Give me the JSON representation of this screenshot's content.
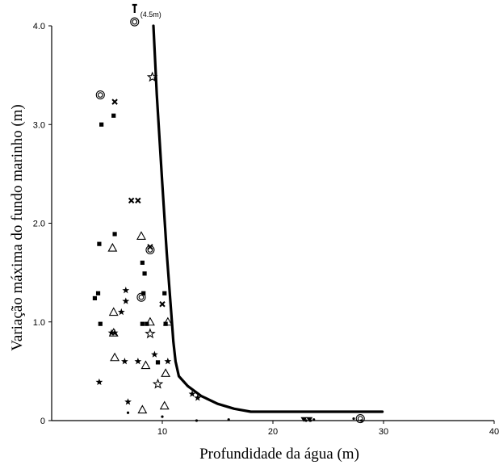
{
  "chart_data": {
    "type": "scatter",
    "xlabel": "Profundidade da água (m)",
    "ylabel": "Variação máxima do fundo marinho (m)",
    "xlim": [
      0,
      40
    ],
    "ylim": [
      0,
      4.0
    ],
    "x_ticks": [
      {
        "value": 10,
        "label": "10"
      },
      {
        "value": 20,
        "label": "20"
      },
      {
        "value": 30,
        "label": "30"
      },
      {
        "value": 40,
        "label": "40"
      }
    ],
    "y_ticks": [
      {
        "value": 0,
        "label": "0"
      },
      {
        "value": 1.0,
        "label": "1.0"
      },
      {
        "value": 2.0,
        "label": "2.0"
      },
      {
        "value": 3.0,
        "label": "3.0"
      },
      {
        "value": 4.0,
        "label": "4.0"
      }
    ],
    "grid": false,
    "annotations": [
      {
        "text": "(4.5m)",
        "x": 7.5,
        "y": 4.0,
        "note": "arrow marker pointing beyond the top of the axis"
      }
    ],
    "envelope_line": {
      "x": [
        9.2,
        9.5,
        10.0,
        10.4,
        10.8,
        11.0,
        11.2,
        11.5,
        12.3,
        13.5,
        15.0,
        16.5,
        18.0,
        20.0,
        25.0,
        29.9
      ],
      "y": [
        4.0,
        3.3,
        2.4,
        1.7,
        1.1,
        0.8,
        0.6,
        0.45,
        0.35,
        0.25,
        0.17,
        0.12,
        0.09,
        0.09,
        0.09,
        0.09
      ]
    },
    "series": [
      {
        "marker": "filled-square",
        "x": [
          3.9,
          4.2,
          4.3,
          4.4,
          4.5,
          5.6,
          5.7,
          8.2,
          8.4,
          8.3,
          8.2,
          8.6,
          9.6,
          10.2,
          10.3
        ],
        "y": [
          1.24,
          1.29,
          1.79,
          0.98,
          3.0,
          3.09,
          1.89,
          1.6,
          1.49,
          1.29,
          0.98,
          0.98,
          0.59,
          1.29,
          0.98
        ]
      },
      {
        "marker": "x",
        "x": [
          5.7,
          7.2,
          7.8,
          8.9,
          10.0
        ],
        "y": [
          3.23,
          2.23,
          2.23,
          1.76,
          1.18
        ]
      },
      {
        "marker": "filled-star",
        "x": [
          4.3,
          5.4,
          5.7,
          6.3,
          6.7,
          6.7,
          6.6,
          6.9,
          7.8,
          9.3,
          10.5,
          12.7,
          13.2
        ],
        "y": [
          0.39,
          0.89,
          0.89,
          1.1,
          1.32,
          1.21,
          0.6,
          0.19,
          0.6,
          0.67,
          0.6,
          0.27,
          0.23
        ]
      },
      {
        "marker": "open-triangle",
        "x": [
          5.5,
          5.6,
          5.6,
          5.7,
          8.1,
          8.5,
          8.9,
          10.5,
          10.3,
          10.2,
          8.2
        ],
        "y": [
          1.75,
          1.1,
          0.89,
          0.64,
          1.87,
          0.56,
          1.0,
          1.0,
          0.48,
          0.15,
          0.11
        ]
      },
      {
        "marker": "open-star",
        "x": [
          9.1,
          8.9,
          9.6
        ],
        "y": [
          3.48,
          0.88,
          0.37
        ]
      },
      {
        "marker": "double-circle",
        "x": [
          4.4,
          7.5,
          8.1,
          8.9,
          27.9
        ],
        "y": [
          3.3,
          4.04,
          1.25,
          1.73,
          0.02
        ]
      },
      {
        "marker": "small-dot",
        "x": [
          6.9,
          10.0,
          13.1,
          16.0,
          23.0,
          23.4,
          23.7,
          27.3,
          28.0
        ],
        "y": [
          0.08,
          0.04,
          0.0,
          0.01,
          0.0,
          0.0,
          0.01,
          0.02,
          0.0
        ]
      },
      {
        "marker": "filled-triangle-down",
        "x": [
          22.8,
          23.3
        ],
        "y": [
          0.01,
          0.01
        ]
      }
    ]
  }
}
